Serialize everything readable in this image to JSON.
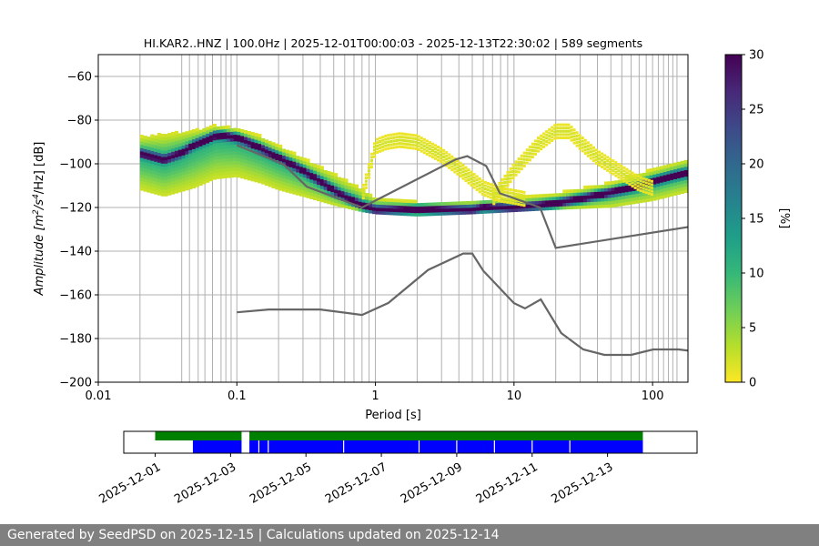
{
  "figure": {
    "title": "HI.KAR2..HNZ | 100.0Hz | 2025-12-01T00:00:03 - 2025-12-13T22:30:02 | 589 segments",
    "footer": "Generated by SeedPSD on 2025-12-15 | Calculations updated on 2025-12-14"
  },
  "chart_data": [
    {
      "type": "heatmap",
      "title": "HI.KAR2..HNZ | 100.0Hz | 2025-12-01T00:00:03 - 2025-12-13T22:30:02 | 589 segments",
      "xlabel": "Period [s]",
      "ylabel_parts": [
        "Amplitude [m",
        "2",
        "/s",
        "4",
        "/Hz] [dB]"
      ],
      "x_scale": "log",
      "xlim": [
        0.01,
        180
      ],
      "ylim": [
        -200,
        -50
      ],
      "x_ticks": [
        {
          "value": 0.01,
          "label": "0.01"
        },
        {
          "value": 0.1,
          "label": "0.1"
        },
        {
          "value": 1,
          "label": "1"
        },
        {
          "value": 10,
          "label": "10"
        },
        {
          "value": 100,
          "label": "100"
        }
      ],
      "y_ticks": [
        -200,
        -180,
        -160,
        -140,
        -120,
        -100,
        -80,
        -60
      ],
      "grid": "on",
      "period_gridlines": [
        0.02,
        0.04,
        0.0455,
        0.0526,
        0.0588,
        0.0667,
        0.0769,
        0.0833,
        0.0909,
        0.1,
        0.2,
        0.3,
        0.4,
        0.5,
        0.6,
        0.7,
        0.8,
        0.9,
        1.0,
        2,
        3,
        4,
        5,
        6,
        7,
        8,
        9,
        10,
        20,
        30,
        40,
        50,
        60,
        70,
        80,
        90,
        100,
        110,
        120,
        130,
        140,
        150
      ],
      "colorbar": {
        "label": "[%]",
        "min": 0,
        "max": 30,
        "ticks": [
          0,
          5,
          10,
          15,
          20,
          25,
          30
        ],
        "colormap": "viridis_r",
        "colors": [
          "#fde725",
          "#b5de2b",
          "#6ece58",
          "#35b779",
          "#1f9e89",
          "#26828e",
          "#31688e",
          "#3e4989",
          "#482878",
          "#440154"
        ]
      },
      "psd_mode": {
        "x": [
          0.02,
          0.03,
          0.04,
          0.05,
          0.06,
          0.07,
          0.08,
          0.1,
          0.12,
          0.15,
          0.2,
          0.3,
          0.4,
          0.5,
          0.6,
          0.7,
          0.8,
          0.9,
          1.0,
          1.5,
          2,
          3,
          4,
          5,
          6,
          8,
          10,
          15,
          20,
          30,
          50,
          80,
          100,
          150,
          180
        ],
        "y": [
          -95,
          -98,
          -95,
          -91,
          -89,
          -87,
          -87,
          -88,
          -90,
          -93,
          -97,
          -103,
          -108,
          -112,
          -115,
          -117,
          -119,
          -120,
          -121,
          -121,
          -121,
          -121,
          -121,
          -121,
          -120,
          -120,
          -120,
          -119,
          -118,
          -116,
          -113,
          -110,
          -108,
          -105,
          -104
        ]
      },
      "band_low": {
        "x": [
          0.02,
          0.03,
          0.05,
          0.07,
          0.1,
          0.15,
          0.2,
          0.3,
          0.5,
          0.8,
          1,
          2,
          5,
          10,
          20,
          50,
          100,
          180
        ],
        "y": [
          -112,
          -115,
          -111,
          -107,
          -106,
          -109,
          -112,
          -115,
          -119,
          -122,
          -123,
          -124,
          -123,
          -122,
          -121,
          -120,
          -117,
          -113
        ]
      },
      "band_high": {
        "x": [
          0.02,
          0.03,
          0.05,
          0.07,
          0.1,
          0.15,
          0.2,
          0.3,
          0.5,
          0.8,
          1,
          2,
          5,
          10,
          20,
          50,
          100,
          180
        ],
        "y": [
          -88,
          -87,
          -85,
          -83,
          -84,
          -88,
          -92,
          -98,
          -105,
          -112,
          -116,
          -118,
          -117,
          -116,
          -114,
          -109,
          -103,
          -98
        ]
      },
      "secondary_ridge_1": {
        "x": [
          0.8,
          1.0,
          1.2,
          1.5,
          2,
          3,
          4,
          5,
          6,
          8,
          10,
          12
        ],
        "y": [
          -116,
          -93,
          -91,
          -90,
          -91,
          -97,
          -103,
          -108,
          -112,
          -115,
          -116,
          -117
        ]
      },
      "secondary_ridge_2": {
        "x": [
          7,
          10,
          15,
          20,
          25,
          30,
          40,
          60,
          80,
          100
        ],
        "y": [
          -117,
          -104,
          -92,
          -86,
          -86,
          -91,
          -98,
          -105,
          -110,
          -112
        ]
      },
      "nhnm": {
        "x": [
          0.1,
          0.17,
          0.22,
          0.32,
          0.8,
          3.8,
          4.6,
          6.3,
          7.9,
          15.4,
          20,
          354.8
        ],
        "y": [
          -91.5,
          -97.4,
          -100.5,
          -110.5,
          -120,
          -98,
          -96.5,
          -101,
          -113.5,
          -120,
          -138.5,
          -126
        ]
      },
      "nlnm": {
        "x": [
          0.1,
          0.17,
          0.4,
          0.8,
          1.24,
          2.4,
          4.3,
          5,
          6,
          10,
          12,
          15.6,
          21.9,
          31.6,
          45,
          70,
          101,
          154,
          328
        ],
        "y": [
          -168,
          -166.7,
          -166.7,
          -169.2,
          -163.7,
          -148.6,
          -141.1,
          -141.1,
          -149,
          -163.8,
          -166.2,
          -162.1,
          -177.5,
          -185,
          -187.5,
          -187.5,
          -185,
          -185,
          -187.5
        ]
      }
    },
    {
      "type": "timeline",
      "x_range": [
        "2025-11-30T04:00",
        "2025-12-15T09:00"
      ],
      "tick_labels": [
        "2025-12-01",
        "2025-12-03",
        "2025-12-05",
        "2025-12-07",
        "2025-12-09",
        "2025-12-11",
        "2025-12-13"
      ],
      "green_segments": [
        {
          "start": "2025-12-01T00:00",
          "end": "2025-12-03T07:00"
        },
        {
          "start": "2025-12-03T12:00",
          "end": "2025-12-13T22:30"
        }
      ],
      "blue_segments": [
        {
          "start": "2025-12-02T00:00",
          "end": "2025-12-03T07:00"
        },
        {
          "start": "2025-12-03T12:00",
          "end": "2025-12-13T22:30"
        }
      ],
      "blue_breaks": [
        "2025-12-03T18:00",
        "2025-12-04T00:00",
        "2025-12-06T00:00",
        "2025-12-08T00:00",
        "2025-12-09T00:00",
        "2025-12-10T00:00",
        "2025-12-11T00:00",
        "2025-12-12T00:00"
      ],
      "colors": {
        "green": "#008000",
        "blue": "#0000ff"
      }
    }
  ]
}
